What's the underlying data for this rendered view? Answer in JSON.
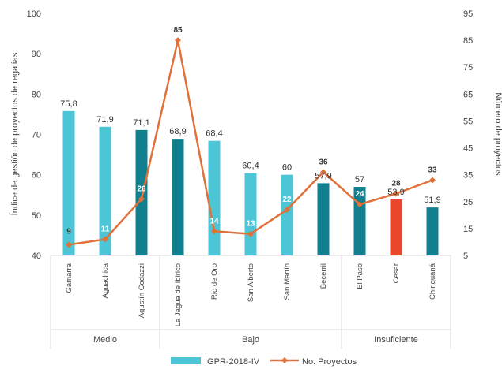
{
  "chart_data": {
    "type": "bar",
    "categories": [
      "Gamarra",
      "Aguachica",
      "Agustín Codazzi",
      "La Jagua de Ibirico",
      "Rio de Oro",
      "San Alberto",
      "San Martín",
      "Becerril",
      "El Paso",
      "Cesar",
      "Chiriguaná"
    ],
    "groups": [
      {
        "label": "Medio",
        "count": 3
      },
      {
        "label": "Bajo",
        "count": 5
      },
      {
        "label": "Insuficiente",
        "count": 3
      }
    ],
    "series": [
      {
        "name": "IGPR-2018-IV",
        "kind": "bar",
        "axis": "left",
        "values": [
          75.8,
          71.9,
          71.1,
          68.9,
          68.4,
          60.4,
          60,
          57.9,
          57,
          53.9,
          51.9
        ],
        "labels": [
          "75,8",
          "71,9",
          "71,1",
          "68,9",
          "68,4",
          "60,4",
          "60",
          "57,9",
          "57",
          "53,9",
          "51,9"
        ],
        "colors": [
          "#4cc6d6",
          "#4cc6d6",
          "#127f8f",
          "#127f8f",
          "#4cc6d6",
          "#4cc6d6",
          "#4cc6d6",
          "#127f8f",
          "#127f8f",
          "#e8472d",
          "#127f8f"
        ]
      },
      {
        "name": "No. Proyectos",
        "kind": "line",
        "axis": "right",
        "values": [
          9,
          11,
          26,
          85,
          14,
          13,
          22,
          36,
          24,
          28,
          33
        ],
        "color": "#e0713a"
      }
    ],
    "ylabel": "Índice de gestión de proyectos de regalías",
    "y2label": "Número de proyectos",
    "ylim": [
      40,
      100
    ],
    "y2lim": [
      5,
      95
    ],
    "yticks": [
      40,
      50,
      60,
      70,
      80,
      90,
      100
    ],
    "y2ticks": [
      5,
      15,
      25,
      35,
      45,
      55,
      65,
      75,
      85,
      95
    ],
    "legend": {
      "position": "bottom",
      "items": [
        "IGPR-2018-IV",
        "No. Proyectos"
      ]
    },
    "grid": false
  }
}
